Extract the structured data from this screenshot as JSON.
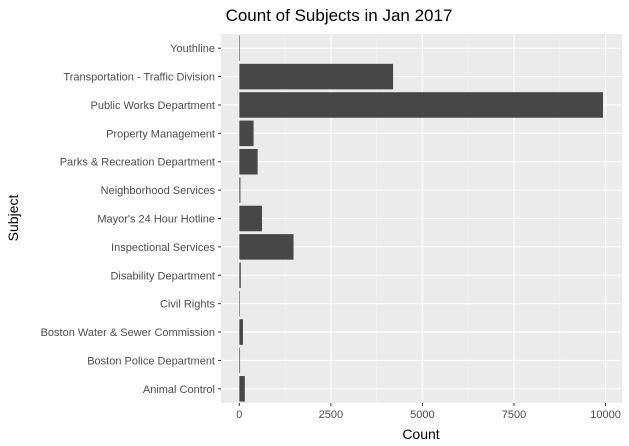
{
  "chart_data": {
    "type": "bar",
    "orientation": "horizontal",
    "title": "Count of Subjects in Jan 2017",
    "xlabel": "Count",
    "ylabel": "Subject",
    "categories": [
      "Animal Control",
      "Boston Police Department",
      "Boston Water & Sewer Commission",
      "Civil Rights",
      "Disability Department",
      "Inspectional Services",
      "Mayor's 24 Hour Hotline",
      "Neighborhood Services",
      "Parks & Recreation Department",
      "Property Management",
      "Public Works Department",
      "Transportation - Traffic Division",
      "Youthline"
    ],
    "values": [
      150,
      20,
      100,
      5,
      40,
      1480,
      620,
      30,
      500,
      390,
      9930,
      4200,
      3
    ],
    "xlim": [
      -500,
      10450
    ],
    "xticks": [
      0,
      2500,
      5000,
      7500,
      10000
    ],
    "xtick_labels": [
      "0",
      "2500",
      "5000",
      "7500",
      "10000"
    ],
    "grid": true,
    "legend": "none",
    "colors": {
      "bar": "#474747",
      "panel": "#ebebeb",
      "grid_major": "#ffffff",
      "grid_minor": "#f5f5f5",
      "tick": "#333333",
      "tick_label": "#4d4d4d"
    }
  }
}
